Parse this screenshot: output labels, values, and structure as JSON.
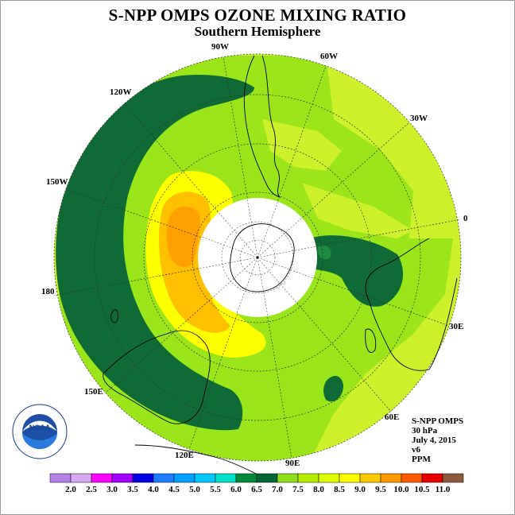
{
  "title": "S-NPP OMPS OZONE MIXING RATIO",
  "subtitle": "Southern Hemisphere",
  "longitude_labels": [
    "90W",
    "60W",
    "30W",
    "0",
    "30E",
    "60E",
    "90E",
    "120E",
    "150E",
    "180",
    "150W",
    "120W"
  ],
  "info": {
    "instrument": "S-NPP OMPS",
    "level": "30 hPa",
    "date": "July 4, 2015",
    "version": "v6",
    "units": "PPM"
  },
  "logo_text": "NOAA",
  "colorbar": {
    "labels": [
      "2.0",
      "2.5",
      "3.0",
      "3.5",
      "4.0",
      "4.5",
      "5.0",
      "5.5",
      "6.0",
      "6.5",
      "7.0",
      "7.5",
      "8.0",
      "8.5",
      "9.0",
      "9.5",
      "10.0",
      "10.5",
      "11.0"
    ],
    "colors": [
      "#b57fe6",
      "#d9a8f2",
      "#ff00ff",
      "#a000ff",
      "#0000e0",
      "#1e7cff",
      "#00a0ff",
      "#00c8ff",
      "#00e0c8",
      "#008a37",
      "#006633",
      "#8fde1a",
      "#b5ee00",
      "#ddff00",
      "#ffff00",
      "#ffc800",
      "#ff9a00",
      "#ff5a00",
      "#e60000",
      "#8b5a3c"
    ]
  },
  "colors": {
    "dark_green": "#0f6a35",
    "medium_green": "#1f8b3f",
    "green": "#9ae61a",
    "light_green": "#ccf02a",
    "yellow": "#ffff00",
    "gold": "#ffc000",
    "orange": "#ffa000"
  }
}
